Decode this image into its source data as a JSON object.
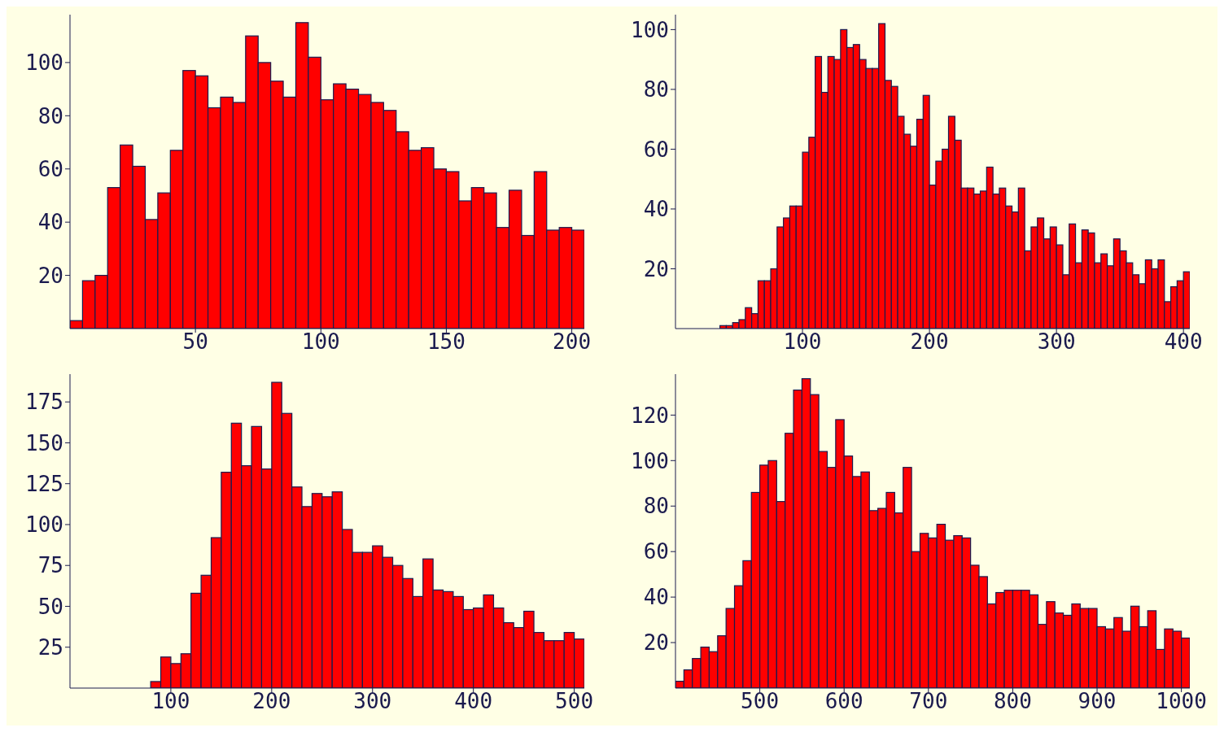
{
  "chart_data": [
    {
      "type": "histogram",
      "color": "#ff0000",
      "xlim": [
        0,
        205
      ],
      "xticks": [
        50,
        100,
        150,
        200
      ],
      "ylim": [
        0,
        118
      ],
      "yticks": [
        20,
        40,
        60,
        80,
        100
      ],
      "bins": [
        0,
        5,
        10,
        15,
        20,
        25,
        30,
        35,
        40,
        45,
        50,
        55,
        60,
        65,
        70,
        75,
        80,
        85,
        90,
        95,
        100,
        105,
        110,
        115,
        120,
        125,
        130,
        135,
        140,
        145,
        150,
        155,
        160,
        165,
        170,
        175,
        180,
        185,
        190,
        195,
        200,
        205
      ],
      "values": [
        3,
        18,
        20,
        53,
        69,
        61,
        41,
        51,
        67,
        97,
        95,
        83,
        87,
        85,
        110,
        100,
        93,
        87,
        115,
        102,
        86,
        92,
        90,
        88,
        85,
        82,
        74,
        67,
        68,
        60,
        59,
        48,
        53,
        51,
        38,
        52,
        35,
        59,
        37,
        38,
        37
      ]
    },
    {
      "type": "histogram",
      "color": "#ff0000",
      "xlim": [
        0,
        405
      ],
      "xticks": [
        100,
        200,
        300,
        400
      ],
      "ylim": [
        0,
        105
      ],
      "yticks": [
        20,
        40,
        60,
        80,
        100
      ],
      "bins": [
        0,
        5,
        10,
        15,
        20,
        25,
        30,
        35,
        40,
        45,
        50,
        55,
        60,
        65,
        70,
        75,
        80,
        85,
        90,
        95,
        100,
        105,
        110,
        115,
        120,
        125,
        130,
        135,
        140,
        145,
        150,
        155,
        160,
        165,
        170,
        175,
        180,
        185,
        190,
        195,
        200,
        205,
        210,
        215,
        220,
        225,
        230,
        235,
        240,
        245,
        250,
        255,
        260,
        265,
        270,
        275,
        280,
        285,
        290,
        295,
        300,
        305,
        310,
        315,
        320,
        325,
        330,
        335,
        340,
        345,
        350,
        355,
        360,
        365,
        370,
        375,
        380,
        385,
        390,
        395,
        400,
        405
      ],
      "values": [
        0,
        0,
        0,
        0,
        0,
        0,
        0,
        1,
        1,
        2,
        3,
        7,
        5,
        16,
        16,
        20,
        34,
        37,
        41,
        41,
        59,
        64,
        91,
        79,
        91,
        90,
        100,
        94,
        95,
        90,
        87,
        87,
        102,
        83,
        81,
        71,
        65,
        61,
        70,
        78,
        48,
        56,
        60,
        71,
        63,
        47,
        47,
        45,
        46,
        54,
        45,
        47,
        41,
        39,
        47,
        26,
        34,
        37,
        30,
        34,
        28,
        18,
        35,
        22,
        33,
        32,
        22,
        25,
        21,
        30,
        26,
        22,
        18,
        15,
        23,
        20,
        23,
        9,
        14,
        16,
        19
      ]
    },
    {
      "type": "histogram",
      "color": "#ff0000",
      "xlim": [
        0,
        510
      ],
      "xticks": [
        100,
        200,
        300,
        400,
        500
      ],
      "ylim": [
        0,
        192
      ],
      "yticks": [
        25,
        50,
        75,
        100,
        125,
        150,
        175
      ],
      "bins": [
        0,
        10,
        20,
        30,
        40,
        50,
        60,
        70,
        80,
        90,
        100,
        110,
        120,
        130,
        140,
        150,
        160,
        170,
        180,
        190,
        200,
        210,
        220,
        230,
        240,
        250,
        260,
        270,
        280,
        290,
        300,
        310,
        320,
        330,
        340,
        350,
        360,
        370,
        380,
        390,
        400,
        410,
        420,
        430,
        440,
        450,
        460,
        470,
        480,
        490,
        500,
        510
      ],
      "values": [
        0,
        0,
        0,
        0,
        0,
        0,
        0,
        0,
        4,
        19,
        15,
        21,
        58,
        69,
        92,
        132,
        162,
        136,
        160,
        134,
        187,
        168,
        123,
        111,
        119,
        117,
        120,
        97,
        83,
        83,
        87,
        80,
        75,
        67,
        56,
        79,
        60,
        59,
        56,
        48,
        49,
        57,
        49,
        40,
        37,
        47,
        34,
        29,
        29,
        34,
        30
      ]
    },
    {
      "type": "histogram",
      "color": "#ff0000",
      "xlim": [
        400,
        1010
      ],
      "xticks": [
        500,
        600,
        700,
        800,
        900,
        1000
      ],
      "ylim": [
        0,
        138
      ],
      "yticks": [
        20,
        40,
        60,
        80,
        100,
        120
      ],
      "bins": [
        400,
        410,
        420,
        430,
        440,
        450,
        460,
        470,
        480,
        490,
        500,
        510,
        520,
        530,
        540,
        550,
        560,
        570,
        580,
        590,
        600,
        610,
        620,
        630,
        640,
        650,
        660,
        670,
        680,
        690,
        700,
        710,
        720,
        730,
        740,
        750,
        760,
        770,
        780,
        790,
        800,
        810,
        820,
        830,
        840,
        850,
        860,
        870,
        880,
        890,
        900,
        910,
        920,
        930,
        940,
        950,
        960,
        970,
        980,
        990,
        1000,
        1010
      ],
      "values": [
        3,
        8,
        13,
        18,
        16,
        23,
        35,
        45,
        56,
        86,
        98,
        100,
        82,
        112,
        131,
        136,
        129,
        104,
        97,
        118,
        102,
        93,
        95,
        78,
        79,
        86,
        77,
        97,
        60,
        68,
        66,
        72,
        65,
        67,
        66,
        54,
        49,
        37,
        42,
        43,
        43,
        43,
        41,
        28,
        38,
        33,
        32,
        37,
        35,
        35,
        27,
        26,
        31,
        25,
        36,
        27,
        34,
        17,
        26,
        25,
        22
      ]
    }
  ]
}
